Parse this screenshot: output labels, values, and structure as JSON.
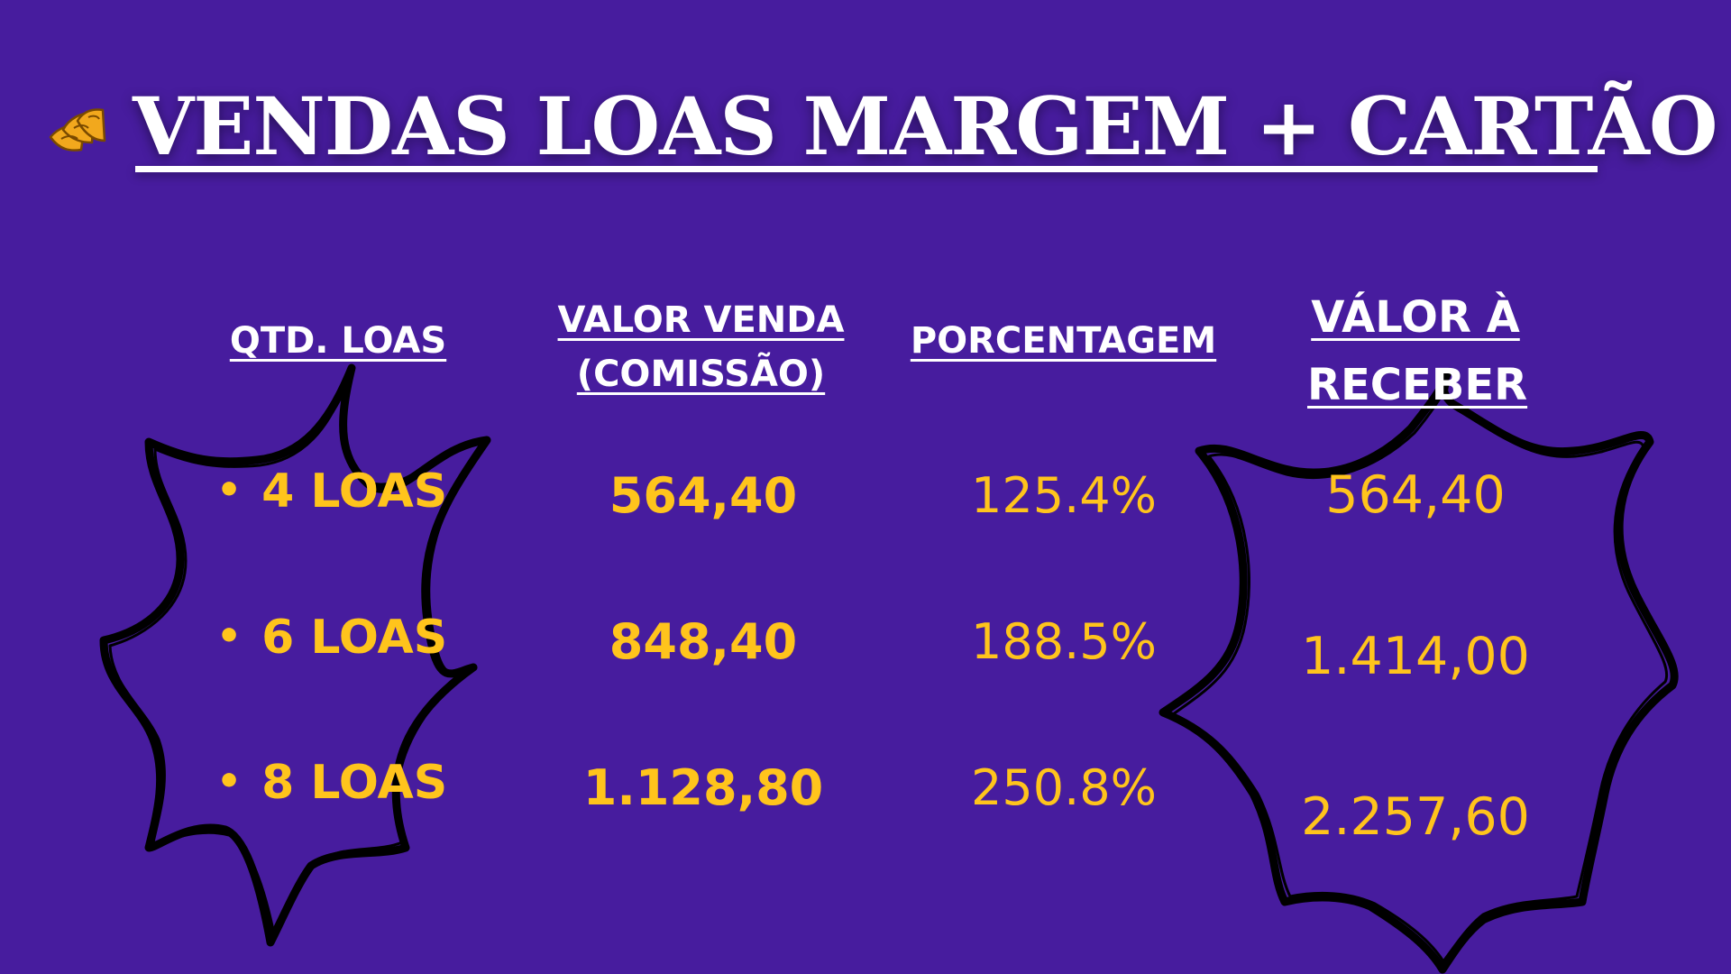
{
  "title": "VENDAS LOAS MARGEM + CARTÃO",
  "logo": {
    "icon": "money-bills-icon",
    "color": "#F2A81D"
  },
  "colors": {
    "background": "#471C9E",
    "accent": "#FFC41C",
    "header": "#FFFFFF",
    "burst_outline": "#000000"
  },
  "table": {
    "headers": {
      "qtd": "QTD. LOAS",
      "valor_line1": "VALOR VENDA",
      "valor_line2": "(COMISSÃO)",
      "porcentagem": "PORCENTAGEM",
      "receber_line1": "VÁLOR À",
      "receber_line2": "RECEBER"
    },
    "rows": [
      {
        "bullet": "•",
        "qtd": "4 LOAS",
        "valor": "564,40",
        "porcentagem": "125.4%",
        "receber": "564,40"
      },
      {
        "bullet": "•",
        "qtd": "6 LOAS",
        "valor": "848,40",
        "porcentagem": "188.5%",
        "receber": "1.414,00"
      },
      {
        "bullet": "•",
        "qtd": "8 LOAS",
        "valor": "1.128,80",
        "porcentagem": "250.8%",
        "receber": "2.257,60"
      }
    ]
  }
}
